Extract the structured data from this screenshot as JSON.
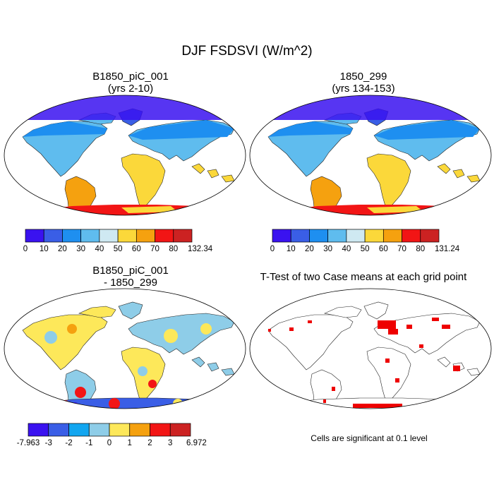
{
  "title": "DJF FSDSVI (W/m^2)",
  "panels": [
    {
      "id": "case1",
      "title_line1": "B1850_piC_001",
      "title_line2": "(yrs 2-10)",
      "colorbar": {
        "colors": [
          "#3a12f0",
          "#3a5ee6",
          "#1e8ff0",
          "#5fbcee",
          "#cfe9f2",
          "#fbd83a",
          "#f5a10f",
          "#f21515",
          "#cc2222"
        ],
        "labels": [
          "0",
          "10",
          "20",
          "30",
          "40",
          "50",
          "60",
          "70",
          "80",
          "132.34"
        ]
      }
    },
    {
      "id": "case2",
      "title_line1": "1850_299",
      "title_line2": "(yrs 134-153)",
      "colorbar": {
        "colors": [
          "#3a12f0",
          "#3a5ee6",
          "#1e8ff0",
          "#5fbcee",
          "#cfe9f2",
          "#fbd83a",
          "#f5a10f",
          "#f21515",
          "#cc2222"
        ],
        "labels": [
          "0",
          "10",
          "20",
          "30",
          "40",
          "50",
          "60",
          "70",
          "80",
          "131.24"
        ]
      }
    },
    {
      "id": "difference",
      "title_line1": "B1850_piC_001",
      "title_line2": "- 1850_299",
      "colorbar": {
        "colors": [
          "#3a12f0",
          "#3a5ee6",
          "#12a6f0",
          "#8ecde8",
          "#fde85a",
          "#f5a10f",
          "#f21515",
          "#cc2222"
        ],
        "labels": [
          "-7.963",
          "-3",
          "-2",
          "-1",
          "0",
          "1",
          "2",
          "3",
          "6.972"
        ]
      }
    },
    {
      "id": "ttest",
      "title_line1": "T-Test of two Case means at each grid point",
      "note": "Cells are significant at 0.1 level",
      "significance_color": "#ee0000"
    }
  ]
}
